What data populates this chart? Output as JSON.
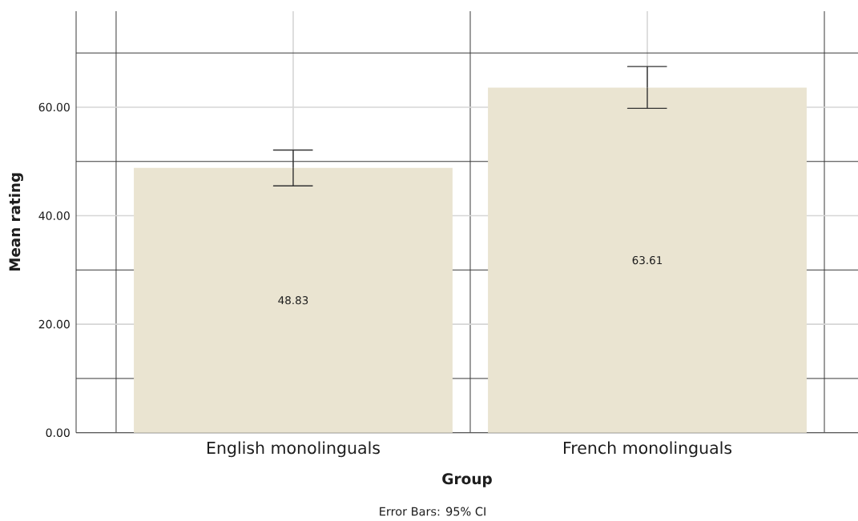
{
  "chart_data": {
    "type": "bar",
    "categories": [
      "English monolinguals",
      "French monolinguals"
    ],
    "values": [
      48.83,
      63.61
    ],
    "color": "#eae4d1",
    "errors": [
      [
        45.5,
        52.1
      ],
      [
        59.8,
        67.5
      ]
    ],
    "data_labels": true,
    "xlabel": "Group",
    "ylabel": "Mean rating",
    "annotations": [
      "Error Bars: 95% CI"
    ],
    "ylim": [
      0,
      77.7
    ],
    "yticks": [
      {
        "value": 0,
        "label": "0.00"
      },
      {
        "value": 20,
        "label": "20.00"
      },
      {
        "value": 40,
        "label": "40.00"
      },
      {
        "value": 60,
        "label": "60.00"
      }
    ],
    "grid": true
  }
}
